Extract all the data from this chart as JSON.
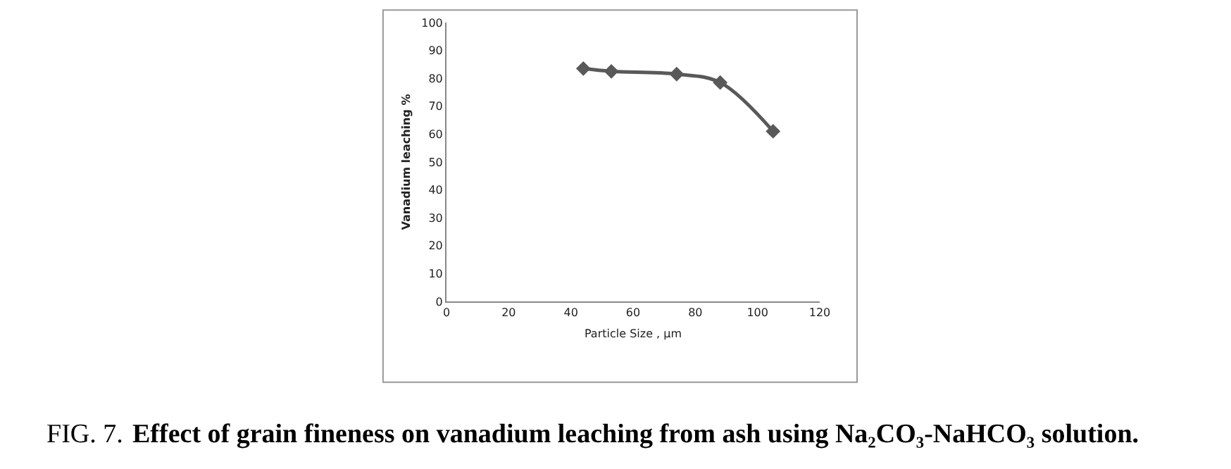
{
  "chart_data": {
    "type": "line",
    "xlabel": "Particle Size , µm",
    "ylabel": "Vanadium leaching %",
    "x": [
      44,
      53,
      74,
      88,
      105
    ],
    "series": [
      {
        "color": "#595959",
        "values": [
          83.5,
          82.5,
          81.5,
          78.5,
          61
        ]
      }
    ],
    "xlim": [
      0,
      120
    ],
    "xticks": [
      0,
      20,
      40,
      60,
      80,
      100,
      120
    ],
    "ylim": [
      0,
      100
    ],
    "yticks": [
      0,
      10,
      20,
      30,
      40,
      50,
      60,
      70,
      80,
      90,
      100
    ],
    "legend": false,
    "marker": "diamond",
    "line_style": "solid",
    "annotations": [
      "FIG. 7.",
      "Effect of grain fineness on vanadium leaching from ash using Na₂CO₃-NaHCO₃ solution."
    ]
  }
}
